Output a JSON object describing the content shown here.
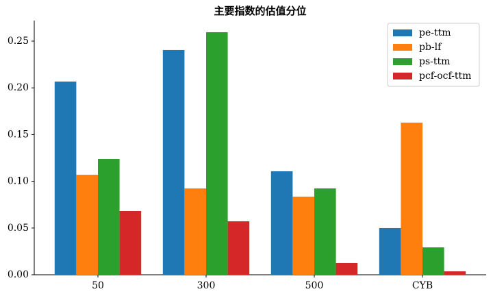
{
  "chart_data": {
    "type": "bar",
    "title": "主要指数的估值分位",
    "categories": [
      "50",
      "300",
      "500",
      "CYB"
    ],
    "series": [
      {
        "name": "pe-ttm",
        "color": "#1f77b4",
        "values": [
          0.2067,
          0.2405,
          0.1107,
          0.0499
        ]
      },
      {
        "name": "pb-lf",
        "color": "#ff7f0e",
        "values": [
          0.107,
          0.0924,
          0.0836,
          0.1628
        ]
      },
      {
        "name": "ps-ttm",
        "color": "#2ca02c",
        "values": [
          0.1239,
          0.2595,
          0.0924,
          0.0293
        ]
      },
      {
        "name": "pcf-ocf-ttm",
        "color": "#d62728",
        "values": [
          0.0682,
          0.0572,
          0.0125,
          0.0037
        ]
      }
    ],
    "ylim": [
      0,
      0.272
    ],
    "yticks": [
      {
        "value": 0,
        "label": "0.00"
      },
      0.05,
      {
        "value": 0.1,
        "label": "0.10"
      },
      0.15,
      {
        "value": 0.2,
        "label": "0.20"
      },
      0.25
    ],
    "legend": "upper right"
  }
}
